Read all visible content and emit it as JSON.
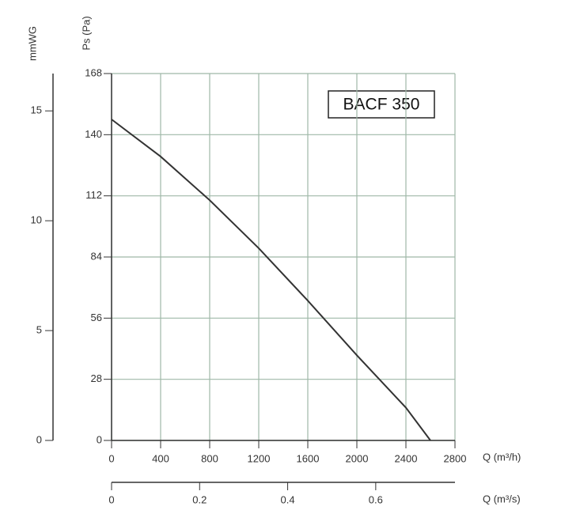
{
  "chart_data": {
    "type": "line",
    "annotation": "BACF 350",
    "x_label": "Q (m³/h)",
    "y_label": "Ps (Pa)",
    "x": [
      0,
      400,
      800,
      1200,
      1600,
      2000,
      2400,
      2600
    ],
    "values": [
      147,
      130,
      110,
      88,
      64,
      39,
      15,
      0
    ],
    "color": "#333333",
    "xlim": [
      0,
      2800
    ],
    "xticks": [
      0,
      400,
      800,
      1200,
      1600,
      2000,
      2400,
      2800
    ],
    "ylim": [
      0,
      168
    ],
    "yticks": [
      0,
      28,
      56,
      84,
      112,
      140,
      168
    ],
    "y2_label": "mmWG",
    "y2lim": [
      0,
      16.7
    ],
    "y2ticks": [
      0,
      5,
      10,
      15
    ],
    "x2_label": "Q (m³/s)",
    "x2lim": [
      0,
      0.78
    ],
    "x2ticks": [
      0,
      0.2,
      0.4,
      0.6
    ],
    "grid": true,
    "grid_color": "#9fb8a8"
  }
}
